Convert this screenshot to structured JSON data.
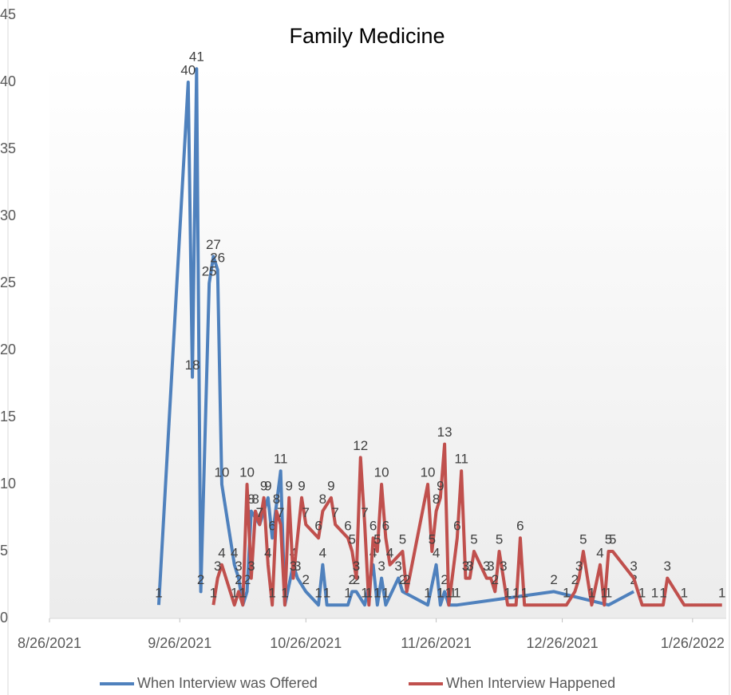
{
  "chart_data": {
    "type": "line",
    "title": "Family Medicine",
    "xlim": [
      "2021-08-26",
      "2022-02-03"
    ],
    "xticks": [
      {
        "value": "2021-08-26",
        "label": "8/26/2021"
      },
      {
        "value": "2021-09-26",
        "label": "9/26/2021"
      },
      {
        "value": "2021-10-26",
        "label": "10/26/2021"
      },
      {
        "value": "2021-11-26",
        "label": "11/26/2021"
      },
      {
        "value": "2021-12-26",
        "label": "12/26/2021"
      },
      {
        "value": "2022-01-26",
        "label": "1/26/2022"
      }
    ],
    "ylim": [
      0,
      45
    ],
    "yticks": [
      0,
      5,
      10,
      15,
      20,
      25,
      30,
      35,
      40,
      45
    ],
    "legend": "bottom",
    "series": [
      {
        "name": "When Interview was Offered",
        "color": "#4f81bd",
        "x": [
          "2021-09-21",
          "2021-09-28",
          "2021-09-29",
          "2021-09-30",
          "2021-10-01",
          "2021-10-03",
          "2021-10-04",
          "2021-10-05",
          "2021-10-06",
          "2021-10-09",
          "2021-10-10",
          "2021-10-11",
          "2021-10-12",
          "2021-10-13",
          "2021-10-15",
          "2021-10-17",
          "2021-10-18",
          "2021-10-20",
          "2021-10-21",
          "2021-10-23",
          "2021-10-24",
          "2021-10-26",
          "2021-10-29",
          "2021-10-30",
          "2021-10-31",
          "2021-11-05",
          "2021-11-06",
          "2021-11-07",
          "2021-11-09",
          "2021-11-11",
          "2021-11-12",
          "2021-11-13",
          "2021-11-14",
          "2021-11-17",
          "2021-11-18",
          "2021-11-24",
          "2021-11-26",
          "2021-11-27",
          "2021-11-28",
          "2021-11-29",
          "2021-11-30",
          "2021-12-01",
          "2021-12-24",
          "2022-01-06",
          "2022-01-12"
        ],
        "values": [
          1,
          40,
          18,
          41,
          2,
          25,
          27,
          26,
          10,
          4,
          3,
          1,
          2,
          8,
          7,
          9,
          6,
          11,
          1,
          4,
          3,
          2,
          1,
          4,
          1,
          1,
          2,
          2,
          1,
          4,
          1,
          3,
          1,
          3,
          2,
          1,
          4,
          1,
          2,
          1,
          1,
          1,
          2,
          1,
          2
        ]
      },
      {
        "name": "When Interview Happened",
        "color": "#c0504d",
        "x": [
          "2021-10-04",
          "2021-10-05",
          "2021-10-06",
          "2021-10-09",
          "2021-10-10",
          "2021-10-11",
          "2021-10-12",
          "2021-10-13",
          "2021-10-14",
          "2021-10-15",
          "2021-10-16",
          "2021-10-17",
          "2021-10-18",
          "2021-10-19",
          "2021-10-20",
          "2021-10-21",
          "2021-10-22",
          "2021-10-23",
          "2021-10-25",
          "2021-10-26",
          "2021-10-29",
          "2021-10-30",
          "2021-11-01",
          "2021-11-02",
          "2021-11-05",
          "2021-11-06",
          "2021-11-07",
          "2021-11-08",
          "2021-11-09",
          "2021-11-10",
          "2021-11-11",
          "2021-11-12",
          "2021-11-13",
          "2021-11-14",
          "2021-11-15",
          "2021-11-18",
          "2021-11-19",
          "2021-11-24",
          "2021-11-25",
          "2021-11-26",
          "2021-11-27",
          "2021-11-28",
          "2021-11-29",
          "2021-12-01",
          "2021-12-02",
          "2021-12-03",
          "2021-12-04",
          "2021-12-05",
          "2021-12-08",
          "2021-12-09",
          "2021-12-10",
          "2021-12-11",
          "2021-12-12",
          "2021-12-13",
          "2021-12-15",
          "2021-12-16",
          "2021-12-17",
          "2021-12-27",
          "2021-12-29",
          "2021-12-30",
          "2021-12-31",
          "2022-01-02",
          "2022-01-04",
          "2022-01-05",
          "2022-01-06",
          "2022-01-07",
          "2022-01-12",
          "2022-01-14",
          "2022-01-17",
          "2022-01-19",
          "2022-01-20",
          "2022-01-24",
          "2022-02-02"
        ],
        "values": [
          1,
          3,
          4,
          1,
          2,
          1,
          10,
          3,
          8,
          7,
          9,
          4,
          1,
          8,
          7,
          1,
          9,
          3,
          9,
          7,
          6,
          8,
          9,
          7,
          6,
          5,
          3,
          12,
          7,
          1,
          6,
          5,
          10,
          6,
          4,
          5,
          2,
          10,
          5,
          8,
          9,
          13,
          1,
          6,
          11,
          3,
          3,
          5,
          3,
          3,
          2,
          5,
          3,
          1,
          1,
          6,
          1,
          1,
          2,
          3,
          5,
          1,
          4,
          1,
          5,
          5,
          3,
          1,
          1,
          1,
          3,
          1,
          1
        ]
      }
    ]
  }
}
